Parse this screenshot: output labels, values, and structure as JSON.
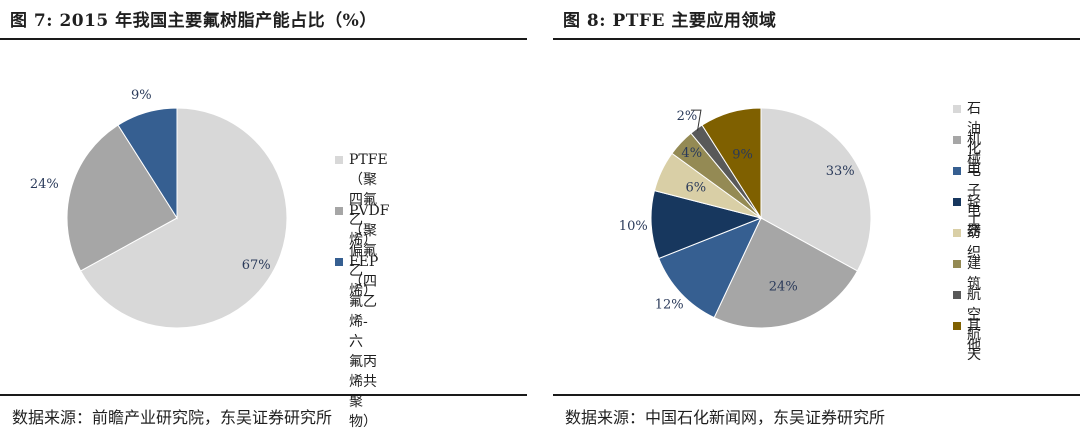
{
  "left": {
    "title": "图 7:  2015 年我国主要氟树脂产能占比（%）",
    "source": "数据来源：前瞻产业研究院，东吴证券研究所",
    "legend": [
      {
        "line1": "PTFE（聚四氟乙",
        "line2": "烯）",
        "color": "#d8d8d8"
      },
      {
        "line1": "PVDF（聚偏氟乙",
        "line2": "烯）",
        "color": "#a6a6a6"
      },
      {
        "line1": "FEP（四氟乙烯-六",
        "line2": "氟丙烯共聚物）",
        "color": "#365f91"
      }
    ]
  },
  "right": {
    "title": "图 8:  PTFE 主要应用领域",
    "source": "数据来源：中国石化新闻网，东吴证券研究所",
    "legend": [
      {
        "label": "石油化工",
        "color": "#d8d8d8"
      },
      {
        "label": "机械",
        "color": "#a6a6a6"
      },
      {
        "label": "电子电器",
        "color": "#365f91"
      },
      {
        "label": "轻工",
        "color": "#17375e"
      },
      {
        "label": "纺织",
        "color": "#d9cfa6"
      },
      {
        "label": "建筑",
        "color": "#948a54"
      },
      {
        "label": "航空航天",
        "color": "#595959"
      },
      {
        "label": "其他",
        "color": "#7f6000"
      }
    ]
  },
  "chart_data": [
    {
      "type": "pie",
      "title": "2015 年我国主要氟树脂产能占比（%）",
      "categories": [
        "PTFE（聚四氟乙烯）",
        "PVDF（聚偏氟乙烯）",
        "FEP（四氟乙烯-六氟丙烯共聚物）"
      ],
      "values": [
        67,
        24,
        9
      ],
      "labels": [
        "67%",
        "24%",
        "9%"
      ],
      "colors": [
        "#d8d8d8",
        "#a6a6a6",
        "#365f91"
      ],
      "legend": "right"
    },
    {
      "type": "pie",
      "title": "PTFE 主要应用领域",
      "categories": [
        "石油化工",
        "机械",
        "电子电器",
        "轻工",
        "纺织",
        "建筑",
        "航空航天",
        "其他"
      ],
      "values": [
        33,
        24,
        12,
        10,
        6,
        4,
        2,
        9
      ],
      "labels": [
        "33%",
        "24%",
        "12%",
        "10%",
        "6%",
        "4%",
        "2%",
        "9%"
      ],
      "colors": [
        "#d8d8d8",
        "#a6a6a6",
        "#365f91",
        "#17375e",
        "#d9cfa6",
        "#948a54",
        "#595959",
        "#7f6000"
      ],
      "legend": "right"
    }
  ]
}
